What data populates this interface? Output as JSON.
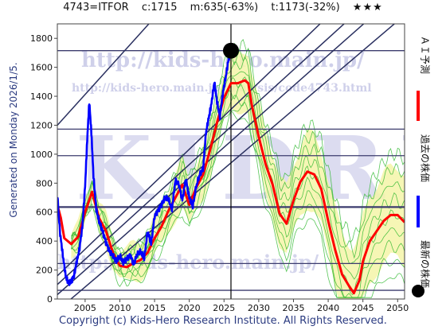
{
  "header": {
    "code": "4743=ITFOR",
    "current": "c:1715",
    "min": "m:635(-63%)",
    "target": "t:1173(-32%)",
    "stars": "★★★"
  },
  "footer": {
    "copyright": "Copyright (c) Kids-Hero Research Institute. All Rights Reserved."
  },
  "side": {
    "generated": "Generated on Monday 2026/1/5."
  },
  "watermark": {
    "url": "http://kids-hero.main.jp/",
    "url2": "http://kids-hero.main.jp/analysis/code4743.html",
    "logo": "KIDRI",
    "url3": "http://kids-hero.main.jp/"
  },
  "legend": {
    "ai": "ＡＩ予測",
    "past": "過去の株価",
    "latest": "最新の株価"
  },
  "colors": {
    "ai": "#ff0000",
    "past": "#0000ff",
    "latest": "#000000",
    "band_green": "#2db82d",
    "band_fill": "#f5f5a8",
    "trend": "#2a3060"
  },
  "chart_data": {
    "type": "line",
    "xlim": [
      2001,
      2051
    ],
    "ylim": [
      0,
      1900
    ],
    "xticks": [
      2005,
      2010,
      2015,
      2020,
      2025,
      2030,
      2035,
      2040,
      2045,
      2050
    ],
    "yticks": [
      0,
      200,
      400,
      600,
      800,
      1000,
      1200,
      1400,
      1600,
      1800
    ],
    "grid": false,
    "legend": "right",
    "hlines": [
      1715,
      1173,
      990,
      635,
      245,
      60
    ],
    "vline": 2026,
    "latest_point": {
      "x": 2026,
      "y": 1715
    },
    "trendlines": [
      {
        "x": [
          2001,
          2049
        ],
        "y": [
          1200,
          3750
        ]
      },
      {
        "x": [
          2001,
          2051
        ],
        "y": [
          160,
          2460
        ]
      },
      {
        "x": [
          2001,
          2051
        ],
        "y": [
          100,
          2280
        ]
      },
      {
        "x": [
          2001,
          2051
        ],
        "y": [
          30,
          2150
        ]
      },
      {
        "x": [
          2001,
          2051
        ],
        "y": [
          -80,
          1960
        ]
      }
    ],
    "series": [
      {
        "name": "過去の株価",
        "x": [
          2001.0,
          2001.4,
          2001.8,
          2002.2,
          2002.6,
          2003.0,
          2003.4,
          2003.8,
          2004.2,
          2004.6,
          2005.0,
          2005.3,
          2005.6,
          2005.9,
          2006.2,
          2006.6,
          2007.0,
          2007.5,
          2008.0,
          2008.5,
          2009.0,
          2009.5,
          2010.0,
          2010.5,
          2011.0,
          2011.5,
          2012.0,
          2012.5,
          2013.0,
          2013.5,
          2014.0,
          2014.5,
          2015.0,
          2015.5,
          2016.0,
          2016.5,
          2017.0,
          2017.5,
          2018.0,
          2018.5,
          2019.0,
          2019.5,
          2020.0,
          2020.5,
          2021.0,
          2021.5,
          2022.0,
          2022.4,
          2022.8,
          2023.2,
          2023.6,
          2024.0,
          2024.4,
          2024.8,
          2025.2,
          2025.6,
          2026.0
        ],
        "y": [
          720,
          450,
          300,
          160,
          110,
          120,
          160,
          260,
          350,
          500,
          780,
          1100,
          1360,
          1150,
          850,
          620,
          540,
          470,
          390,
          330,
          300,
          260,
          300,
          250,
          280,
          300,
          240,
          310,
          330,
          280,
          470,
          380,
          570,
          610,
          650,
          700,
          690,
          620,
          820,
          790,
          680,
          830,
          700,
          640,
          780,
          860,
          900,
          1150,
          1250,
          1350,
          1500,
          1360,
          1260,
          1410,
          1520,
          1640,
          1715
        ]
      },
      {
        "name": "ＡＩ予測",
        "x": [
          2001.0,
          2001.5,
          2002.0,
          2003.0,
          2004.0,
          2005.0,
          2006.0,
          2007.0,
          2008.0,
          2009.0,
          2010.0,
          2011.0,
          2012.0,
          2013.0,
          2014.0,
          2015.0,
          2016.0,
          2017.0,
          2018.0,
          2019.0,
          2020.0,
          2021.0,
          2022.0,
          2023.0,
          2024.0,
          2025.0,
          2026.0,
          2027.0,
          2028.0,
          2028.5,
          2029.0,
          2030.0,
          2031.0,
          2032.0,
          2033.0,
          2034.0,
          2035.0,
          2036.0,
          2037.0,
          2038.0,
          2039.0,
          2040.0,
          2041.0,
          2042.0,
          2043.0,
          2043.7,
          2044.5,
          2045.0,
          2046.0,
          2047.0,
          2048.0,
          2049.0,
          2050.0,
          2051.0
        ],
        "y": [
          650,
          560,
          420,
          380,
          430,
          600,
          740,
          560,
          470,
          320,
          230,
          220,
          250,
          270,
          320,
          420,
          500,
          610,
          700,
          790,
          650,
          770,
          860,
          1030,
          1220,
          1390,
          1490,
          1490,
          1510,
          1490,
          1340,
          1120,
          930,
          790,
          590,
          520,
          680,
          810,
          880,
          860,
          760,
          540,
          340,
          170,
          90,
          40,
          130,
          260,
          400,
          470,
          540,
          580,
          580,
          530
        ]
      }
    ]
  }
}
